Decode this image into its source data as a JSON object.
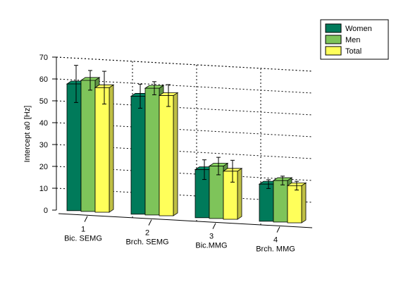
{
  "chart_data": {
    "type": "bar",
    "ylabel": "Intercept a0 [Hz]",
    "ylim": [
      0,
      70
    ],
    "yticks": [
      0,
      10,
      20,
      30,
      40,
      50,
      60,
      70
    ],
    "grid": true,
    "legend_position": "top-right",
    "categories": [
      {
        "index": "1",
        "name": "Bic. SEMG"
      },
      {
        "index": "2",
        "name": "Brch. SEMG"
      },
      {
        "index": "3",
        "name": "Bic.MMG"
      },
      {
        "index": "4",
        "name": "Brch. MMG"
      }
    ],
    "series": [
      {
        "name": "Women",
        "color": "#007a5a",
        "values": [
          58,
          54,
          22,
          17
        ],
        "errors": [
          8.5,
          5.5,
          4.5,
          2
        ]
      },
      {
        "name": "Men",
        "color": "#7ec45a",
        "values": [
          60,
          58,
          24,
          19
        ],
        "errors": [
          4.5,
          3,
          4,
          2
        ]
      },
      {
        "name": "Total",
        "color": "#ffff5a",
        "values": [
          57,
          55,
          22,
          17
        ],
        "errors": [
          7.5,
          5,
          5,
          2
        ]
      }
    ]
  }
}
